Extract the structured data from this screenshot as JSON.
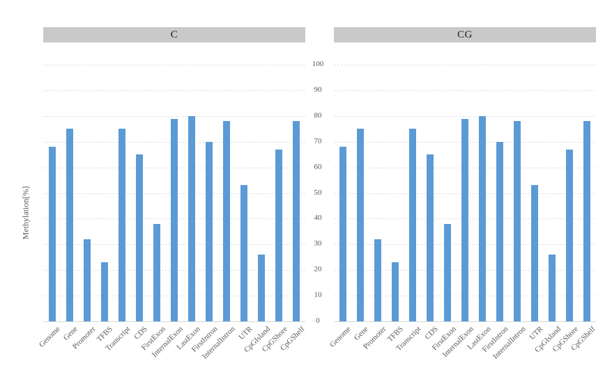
{
  "y_axis_title": "Methylation[%]",
  "colors": {
    "bar": "#5b9bd5",
    "panel_header_bg": "#c9c9c9",
    "panel_header_text": "#1f1f1f",
    "axis_text": "#595959",
    "gridline": "#e2e2e2",
    "axis_line": "#d6d6d6"
  },
  "chart_data": [
    {
      "type": "bar",
      "title": "C",
      "categories": [
        "Genome",
        "Gene",
        "Promoter",
        "TFBS",
        "Transcript",
        "CDS",
        "FirstExon",
        "InternalExon",
        "LastExon",
        "FirstIntron",
        "InternalIntron",
        "UTR",
        "CpGIsland",
        "CpGShore",
        "CpGShelf"
      ],
      "values": [
        68,
        75,
        32,
        23,
        75,
        65,
        38,
        79,
        80,
        70,
        78,
        53,
        26,
        67,
        78
      ],
      "xlabel": "",
      "ylabel": "Methylation[%]",
      "ylim": [
        0,
        100
      ],
      "yticks": [
        0,
        10,
        20,
        30,
        40,
        50,
        60,
        70,
        80,
        90,
        100
      ],
      "grid": "horizontal-dashed",
      "legend": "none",
      "bar_color": "#5b9bd5"
    },
    {
      "type": "bar",
      "title": "CG",
      "categories": [
        "Genome",
        "Gene",
        "Promoter",
        "TFBS",
        "Transcript",
        "CDS",
        "FirstExon",
        "InternalExon",
        "LastExon",
        "FirstIntron",
        "InternalIntron",
        "UTR",
        "CpGIsland",
        "CpGShore",
        "CpGShelf"
      ],
      "values": [
        68,
        75,
        32,
        23,
        75,
        65,
        38,
        79,
        80,
        70,
        78,
        53,
        26,
        67,
        78
      ],
      "xlabel": "",
      "ylabel": "Methylation[%]",
      "ylim": [
        0,
        100
      ],
      "yticks": [
        0,
        10,
        20,
        30,
        40,
        50,
        60,
        70,
        80,
        90,
        100
      ],
      "grid": "horizontal-dashed",
      "legend": "none",
      "bar_color": "#5b9bd5"
    }
  ]
}
